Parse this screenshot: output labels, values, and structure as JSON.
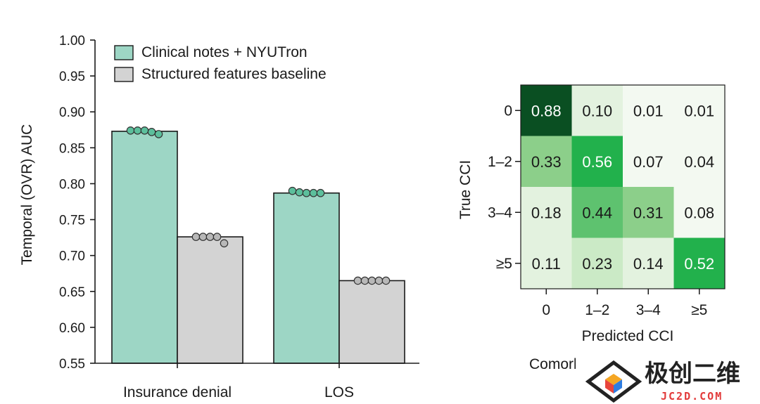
{
  "chart_data": [
    {
      "type": "bar",
      "ylabel": "Temporal (OVR) AUC",
      "ylim": [
        0.55,
        1.0
      ],
      "yticks": [
        "0.55",
        "0.60",
        "0.65",
        "0.70",
        "0.75",
        "0.80",
        "0.85",
        "0.90",
        "0.95",
        "1.00"
      ],
      "categories": [
        "Insurance denial",
        "LOS"
      ],
      "legend_position": "top-left",
      "series": [
        {
          "name": "Clinical notes + NYUTron",
          "color": "#9dd6c5",
          "values": [
            0.873,
            0.787
          ],
          "points": [
            [
              0.874,
              0.874,
              0.874,
              0.872,
              0.869
            ],
            [
              0.79,
              0.788,
              0.787,
              0.787,
              0.787
            ]
          ]
        },
        {
          "name": "Structured features baseline",
          "color": "#d3d3d3",
          "values": [
            0.726,
            0.665
          ],
          "points": [
            [
              0.726,
              0.726,
              0.726,
              0.726,
              0.717
            ],
            [
              0.665,
              0.665,
              0.665,
              0.665,
              0.665
            ]
          ]
        }
      ]
    },
    {
      "type": "heatmap",
      "ylabel": "True CCI",
      "xlabel": "Predicted CCI",
      "rows": [
        "0",
        "1–2",
        "3–4",
        "≥5"
      ],
      "cols": [
        "0",
        "1–2",
        "3–4",
        "≥5"
      ],
      "values": [
        [
          0.88,
          0.1,
          0.01,
          0.01
        ],
        [
          0.33,
          0.56,
          0.07,
          0.04
        ],
        [
          0.18,
          0.44,
          0.31,
          0.08
        ],
        [
          0.11,
          0.23,
          0.14,
          0.52
        ]
      ],
      "labels": [
        [
          "0.88",
          "0.10",
          "0.01",
          "0.01"
        ],
        [
          "0.33",
          "0.56",
          "0.07",
          "0.04"
        ],
        [
          "0.18",
          "0.44",
          "0.31",
          "0.08"
        ],
        [
          "0.11",
          "0.23",
          "0.14",
          "0.52"
        ]
      ],
      "palette": [
        "#f3f9f1",
        "#cbeac6",
        "#8ccf8a",
        "#5ec26f",
        "#22b14c",
        "#0a4f22"
      ]
    }
  ],
  "clipped_caption": "Comorbidity imputation",
  "watermark": {
    "brand": "极创二维",
    "domain": "JC2D.COM"
  }
}
